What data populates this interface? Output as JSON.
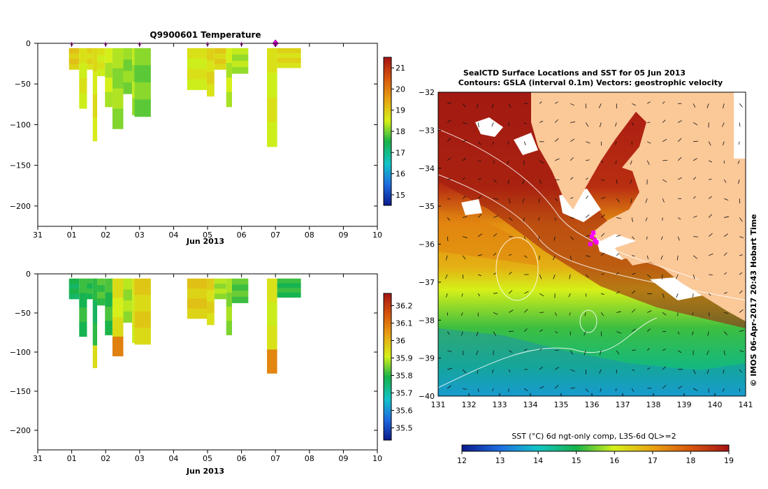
{
  "chart_data": [
    {
      "type": "heatmap",
      "panel": "temperature",
      "title": "Q9900601  Temperature",
      "xlabel": "Jun 2013",
      "ylabel": "",
      "x_ticks": [
        "31",
        "01",
        "02",
        "03",
        "04",
        "05",
        "06",
        "07",
        "08",
        "09",
        "10"
      ],
      "xlim": [
        0,
        10
      ],
      "y_ticks": [
        0,
        -50,
        -100,
        -150,
        -200
      ],
      "ylim": [
        -225,
        0
      ],
      "colorbar": {
        "ticks": [
          "21",
          "20",
          "19",
          "18",
          "17",
          "16",
          "15"
        ],
        "range": [
          14.5,
          21.5
        ]
      },
      "markers": [
        1.0,
        2.0,
        3.0,
        5.0,
        6.0
      ],
      "highlight_marker": 7.0,
      "profiles": [
        {
          "x0": 0.92,
          "x1": 1.22,
          "depth": 32,
          "value": 19.0
        },
        {
          "x0": 1.22,
          "x1": 1.45,
          "depth": 80,
          "value": 18.6
        },
        {
          "x0": 1.45,
          "x1": 1.62,
          "depth": 32,
          "value": 18.8
        },
        {
          "x0": 1.62,
          "x1": 1.75,
          "depth": 120,
          "value": 18.7
        },
        {
          "x0": 1.75,
          "x1": 1.98,
          "depth": 40,
          "value": 18.6
        },
        {
          "x0": 1.98,
          "x1": 2.2,
          "depth": 78,
          "value": 18.4
        },
        {
          "x0": 2.2,
          "x1": 2.52,
          "depth": 105,
          "value": 18.2
        },
        {
          "x0": 2.52,
          "x1": 2.78,
          "depth": 62,
          "value": 18.1
        },
        {
          "x0": 2.78,
          "x1": 2.85,
          "depth": 88,
          "value": 18.3
        },
        {
          "x0": 2.85,
          "x1": 3.33,
          "depth": 90,
          "value": 18.0
        },
        {
          "x0": 4.4,
          "x1": 4.98,
          "depth": 57,
          "value": 18.6
        },
        {
          "x0": 4.98,
          "x1": 5.2,
          "depth": 65,
          "value": 18.8
        },
        {
          "x0": 5.2,
          "x1": 5.55,
          "depth": 32,
          "value": 18.9
        },
        {
          "x0": 5.55,
          "x1": 5.72,
          "depth": 78,
          "value": 18.4
        },
        {
          "x0": 5.72,
          "x1": 6.2,
          "depth": 37,
          "value": 18.3
        },
        {
          "x0": 6.75,
          "x1": 7.05,
          "depth": 127,
          "value": 18.6
        },
        {
          "x0": 7.05,
          "x1": 7.75,
          "depth": 30,
          "value": 18.8
        }
      ]
    },
    {
      "type": "heatmap",
      "panel": "salinity",
      "title": "",
      "xlabel": "Jun 2013",
      "ylabel": "",
      "x_ticks": [
        "31",
        "01",
        "02",
        "03",
        "04",
        "05",
        "06",
        "07",
        "08",
        "09",
        "10"
      ],
      "xlim": [
        0,
        10
      ],
      "y_ticks": [
        0,
        -50,
        -100,
        -150,
        -200
      ],
      "ylim": [
        -225,
        0
      ],
      "colorbar": {
        "ticks": [
          "36.2",
          "36.1",
          "36",
          "35.9",
          "35.8",
          "35.7",
          "35.6",
          "35.5"
        ],
        "range": [
          35.43,
          36.27
        ]
      },
      "profiles": [
        {
          "x0": 0.92,
          "x1": 1.22,
          "depth": 32,
          "value": 35.78
        },
        {
          "x0": 1.22,
          "x1": 1.45,
          "depth": 80,
          "value": 35.8
        },
        {
          "x0": 1.45,
          "x1": 1.62,
          "depth": 32,
          "value": 35.8
        },
        {
          "x0": 1.62,
          "x1": 1.75,
          "depth": 120,
          "value": 35.79
        },
        {
          "x0": 1.75,
          "x1": 1.98,
          "depth": 40,
          "value": 35.82
        },
        {
          "x0": 1.98,
          "x1": 2.2,
          "depth": 78,
          "value": 35.81
        },
        {
          "x0": 2.2,
          "x1": 2.52,
          "depth": 105,
          "value": 35.93
        },
        {
          "x0": 2.52,
          "x1": 2.78,
          "depth": 62,
          "value": 35.88
        },
        {
          "x0": 2.78,
          "x1": 2.85,
          "depth": 88,
          "value": 35.92
        },
        {
          "x0": 2.85,
          "x1": 3.33,
          "depth": 90,
          "value": 35.96
        },
        {
          "x0": 4.4,
          "x1": 4.98,
          "depth": 57,
          "value": 35.97
        },
        {
          "x0": 4.98,
          "x1": 5.2,
          "depth": 65,
          "value": 35.95
        },
        {
          "x0": 5.2,
          "x1": 5.55,
          "depth": 32,
          "value": 35.88
        },
        {
          "x0": 5.55,
          "x1": 5.72,
          "depth": 78,
          "value": 35.87
        },
        {
          "x0": 5.72,
          "x1": 6.2,
          "depth": 37,
          "value": 35.83
        },
        {
          "x0": 6.75,
          "x1": 7.05,
          "depth": 127,
          "value": 35.92
        },
        {
          "x0": 7.05,
          "x1": 7.75,
          "depth": 30,
          "value": 35.8
        }
      ]
    },
    {
      "type": "heatmap",
      "panel": "sst-map",
      "title": "SealCTD Surface Locations and SST for 05 Jun 2013",
      "subtitle": "Contours: GSLA (interval 0.1m) Vectors: geostrophic velocity",
      "x_ticks": [
        "131",
        "132",
        "133",
        "134",
        "135",
        "136",
        "137",
        "138",
        "139",
        "140",
        "141"
      ],
      "xlim": [
        131,
        141
      ],
      "y_ticks": [
        "-32",
        "-33",
        "-34",
        "-35",
        "-36",
        "-37",
        "-38",
        "-39",
        "-40"
      ],
      "ylim": [
        -40,
        -32
      ],
      "side_label": "© IMOS 06-Apr-2017 20:43 Hobart Time",
      "colorbar": {
        "label": "SST (°C) 6d ngt-only comp, L3S-6d QL>=2",
        "ticks": [
          "12",
          "13",
          "14",
          "15",
          "16",
          "17",
          "18",
          "19"
        ],
        "range": [
          12,
          19
        ]
      },
      "sst_gradient": [
        {
          "lat": -32,
          "value": 18.9
        },
        {
          "lat": -34.5,
          "value": 18.6
        },
        {
          "lat": -35.5,
          "value": 17.2
        },
        {
          "lat": -36.6,
          "value": 16.8
        },
        {
          "lat": -37.2,
          "value": 16.0
        },
        {
          "lat": -38.2,
          "value": 15.2
        },
        {
          "lat": -39.2,
          "value": 14.6
        },
        {
          "lat": -40,
          "value": 13.7
        }
      ],
      "seal_positions": [
        {
          "lon": 136.0,
          "lat": -35.8
        },
        {
          "lon": 136.1,
          "lat": -35.9
        },
        {
          "lon": 135.95,
          "lat": -36.0
        },
        {
          "lon": 136.05,
          "lat": -35.7
        },
        {
          "lon": 136.15,
          "lat": -35.95
        }
      ]
    }
  ]
}
